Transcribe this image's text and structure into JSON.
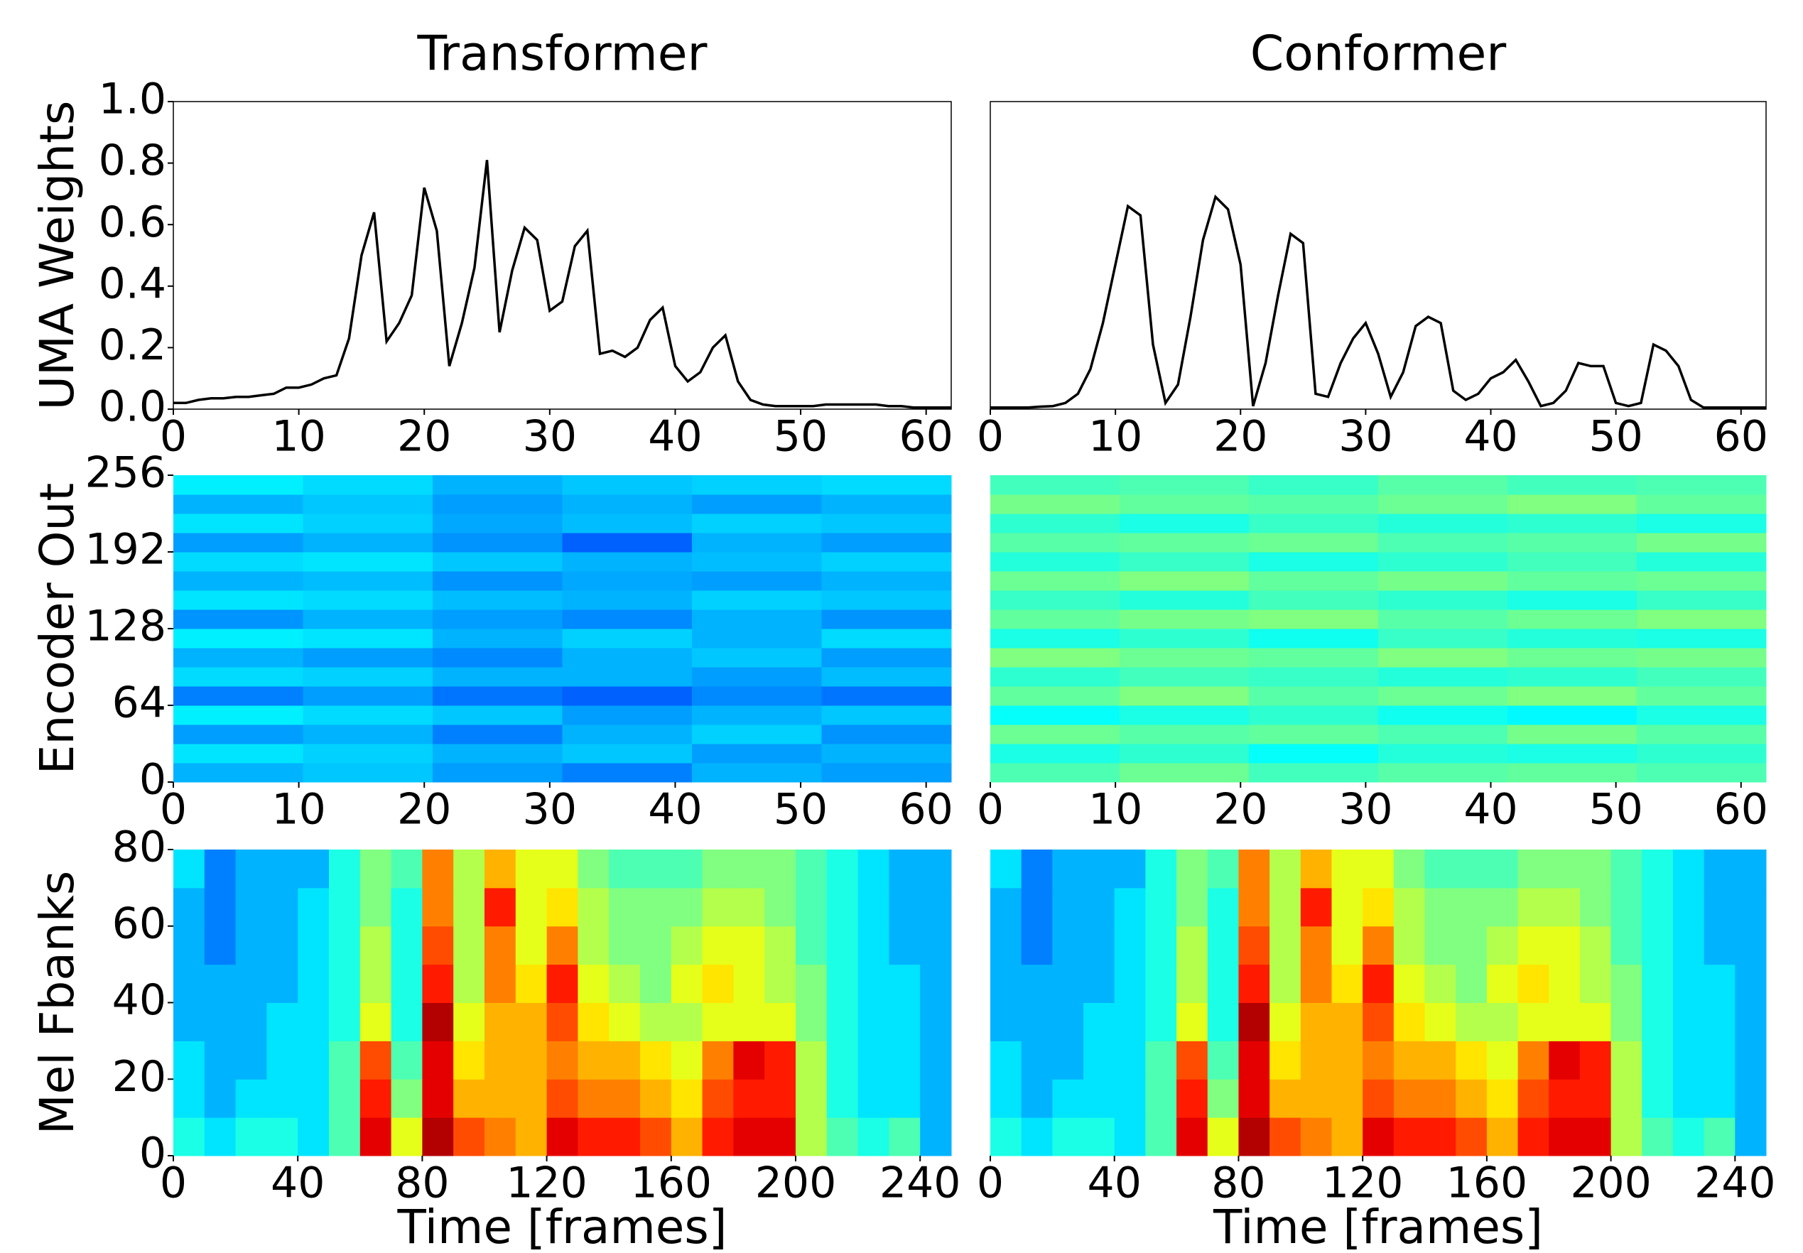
{
  "chart_data": [
    {
      "type": "line",
      "title": "Transformer",
      "ylabel": "UMA Weights",
      "color": "#000000",
      "x": [
        0,
        1,
        2,
        3,
        4,
        5,
        6,
        7,
        8,
        9,
        10,
        11,
        12,
        13,
        14,
        15,
        16,
        17,
        18,
        19,
        20,
        21,
        22,
        23,
        24,
        25,
        26,
        27,
        28,
        29,
        30,
        31,
        32,
        33,
        34,
        35,
        36,
        37,
        38,
        39,
        40,
        41,
        42,
        43,
        44,
        45,
        46,
        47,
        48,
        49,
        50,
        51,
        52,
        53,
        54,
        55,
        56,
        57,
        58,
        59,
        60,
        61,
        62
      ],
      "values": [
        0.02,
        0.02,
        0.03,
        0.035,
        0.035,
        0.04,
        0.04,
        0.045,
        0.05,
        0.07,
        0.07,
        0.08,
        0.1,
        0.11,
        0.23,
        0.5,
        0.64,
        0.22,
        0.28,
        0.37,
        0.72,
        0.58,
        0.14,
        0.28,
        0.46,
        0.81,
        0.25,
        0.45,
        0.59,
        0.55,
        0.32,
        0.35,
        0.53,
        0.58,
        0.18,
        0.19,
        0.17,
        0.2,
        0.29,
        0.33,
        0.14,
        0.09,
        0.12,
        0.2,
        0.24,
        0.09,
        0.03,
        0.015,
        0.01,
        0.01,
        0.01,
        0.01,
        0.015,
        0.015,
        0.015,
        0.015,
        0.015,
        0.01,
        0.01,
        0.005,
        0.005,
        0.005,
        0.005
      ],
      "xlim": [
        0,
        62
      ],
      "ylim": [
        0,
        1
      ],
      "xticks": [
        0,
        10,
        20,
        30,
        40,
        50,
        60
      ],
      "yticks": [
        {
          "value": 0,
          "label": "0.0"
        },
        0.2,
        0.4,
        0.6,
        0.8,
        {
          "value": 1,
          "label": "1.0"
        }
      ]
    },
    {
      "type": "line",
      "title": "Conformer",
      "color": "#000000",
      "x": [
        0,
        1,
        2,
        3,
        4,
        5,
        6,
        7,
        8,
        9,
        10,
        11,
        12,
        13,
        14,
        15,
        16,
        17,
        18,
        19,
        20,
        21,
        22,
        23,
        24,
        25,
        26,
        27,
        28,
        29,
        30,
        31,
        32,
        33,
        34,
        35,
        36,
        37,
        38,
        39,
        40,
        41,
        42,
        43,
        44,
        45,
        46,
        47,
        48,
        49,
        50,
        51,
        52,
        53,
        54,
        55,
        56,
        57,
        58,
        59,
        60,
        61,
        62
      ],
      "values": [
        0.005,
        0.005,
        0.005,
        0.005,
        0.008,
        0.01,
        0.02,
        0.05,
        0.13,
        0.28,
        0.47,
        0.66,
        0.63,
        0.21,
        0.02,
        0.08,
        0.3,
        0.55,
        0.69,
        0.65,
        0.47,
        0.01,
        0.15,
        0.37,
        0.57,
        0.54,
        0.05,
        0.04,
        0.15,
        0.23,
        0.28,
        0.18,
        0.04,
        0.12,
        0.27,
        0.3,
        0.28,
        0.06,
        0.03,
        0.05,
        0.1,
        0.12,
        0.16,
        0.09,
        0.01,
        0.02,
        0.06,
        0.15,
        0.14,
        0.14,
        0.02,
        0.01,
        0.02,
        0.21,
        0.19,
        0.14,
        0.03,
        0.005,
        0.005,
        0.005,
        0.005,
        0.005,
        0.005
      ],
      "xlim": [
        0,
        62
      ],
      "ylim": [
        0,
        1
      ],
      "xticks": [
        0,
        10,
        20,
        30,
        40,
        50,
        60
      ]
    },
    {
      "type": "heatmap",
      "ylabel": "Encoder Out",
      "colormap": "jet",
      "xlim": [
        0,
        62
      ],
      "ylim": [
        0,
        256
      ],
      "xticks": [
        0,
        10,
        20,
        30,
        40,
        50,
        60
      ],
      "yticks": [
        0,
        64,
        128,
        192,
        256
      ],
      "z": [
        [
          0.3,
          0.32,
          0.28,
          0.25,
          0.3,
          0.28
        ],
        [
          0.35,
          0.33,
          0.3,
          0.32,
          0.28,
          0.3
        ],
        [
          0.28,
          0.3,
          0.25,
          0.3,
          0.33,
          0.27
        ],
        [
          0.36,
          0.34,
          0.32,
          0.28,
          0.3,
          0.32
        ],
        [
          0.25,
          0.28,
          0.24,
          0.22,
          0.26,
          0.24
        ],
        [
          0.34,
          0.33,
          0.3,
          0.3,
          0.28,
          0.31
        ],
        [
          0.3,
          0.28,
          0.26,
          0.3,
          0.32,
          0.28
        ],
        [
          0.36,
          0.35,
          0.3,
          0.33,
          0.3,
          0.34
        ],
        [
          0.27,
          0.3,
          0.28,
          0.26,
          0.3,
          0.27
        ],
        [
          0.35,
          0.34,
          0.31,
          0.3,
          0.33,
          0.32
        ],
        [
          0.3,
          0.31,
          0.27,
          0.29,
          0.28,
          0.3
        ],
        [
          0.34,
          0.35,
          0.32,
          0.3,
          0.31,
          0.33
        ],
        [
          0.28,
          0.3,
          0.27,
          0.22,
          0.3,
          0.28
        ],
        [
          0.35,
          0.33,
          0.29,
          0.31,
          0.33,
          0.32
        ],
        [
          0.3,
          0.32,
          0.28,
          0.3,
          0.28,
          0.3
        ],
        [
          0.36,
          0.34,
          0.3,
          0.32,
          0.33,
          0.34
        ]
      ]
    },
    {
      "type": "heatmap",
      "colormap": "jet",
      "xlim": [
        0,
        62
      ],
      "ylim": [
        0,
        256
      ],
      "xticks": [
        0,
        10,
        20,
        30,
        40,
        50,
        60
      ],
      "z": [
        [
          0.45,
          0.48,
          0.44,
          0.46,
          0.47,
          0.45
        ],
        [
          0.4,
          0.42,
          0.38,
          0.41,
          0.4,
          0.42
        ],
        [
          0.48,
          0.46,
          0.47,
          0.45,
          0.49,
          0.46
        ],
        [
          0.38,
          0.4,
          0.42,
          0.39,
          0.37,
          0.4
        ],
        [
          0.47,
          0.5,
          0.46,
          0.48,
          0.5,
          0.47
        ],
        [
          0.42,
          0.44,
          0.43,
          0.41,
          0.42,
          0.44
        ],
        [
          0.5,
          0.48,
          0.47,
          0.5,
          0.48,
          0.49
        ],
        [
          0.4,
          0.42,
          0.39,
          0.43,
          0.41,
          0.4
        ],
        [
          0.47,
          0.49,
          0.5,
          0.46,
          0.48,
          0.5
        ],
        [
          0.43,
          0.41,
          0.44,
          0.42,
          0.4,
          0.43
        ],
        [
          0.48,
          0.5,
          0.47,
          0.49,
          0.47,
          0.48
        ],
        [
          0.41,
          0.43,
          0.4,
          0.42,
          0.44,
          0.41
        ],
        [
          0.46,
          0.47,
          0.48,
          0.45,
          0.46,
          0.49
        ],
        [
          0.42,
          0.4,
          0.43,
          0.41,
          0.42,
          0.4
        ],
        [
          0.49,
          0.47,
          0.46,
          0.48,
          0.5,
          0.47
        ],
        [
          0.44,
          0.45,
          0.43,
          0.46,
          0.44,
          0.45
        ]
      ]
    },
    {
      "type": "heatmap",
      "ylabel": "Mel Fbanks",
      "xlabel": "Time [frames]",
      "colormap": "jet",
      "xlim": [
        0,
        250
      ],
      "ylim": [
        0,
        80
      ],
      "xticks": [
        0,
        40,
        80,
        120,
        160,
        200,
        240
      ],
      "yticks": [
        0,
        20,
        40,
        60,
        80
      ],
      "z": [
        [
          0.4,
          0.35,
          0.4,
          0.4,
          0.35,
          0.45,
          0.9,
          0.6,
          0.95,
          0.8,
          0.75,
          0.7,
          0.9,
          0.85,
          0.85,
          0.8,
          0.7,
          0.85,
          0.9,
          0.9,
          0.55,
          0.45,
          0.4,
          0.45,
          0.3
        ],
        [
          0.35,
          0.3,
          0.35,
          0.35,
          0.35,
          0.45,
          0.85,
          0.5,
          0.9,
          0.7,
          0.7,
          0.7,
          0.8,
          0.75,
          0.75,
          0.7,
          0.65,
          0.8,
          0.85,
          0.85,
          0.55,
          0.4,
          0.35,
          0.35,
          0.3
        ],
        [
          0.35,
          0.3,
          0.3,
          0.35,
          0.35,
          0.45,
          0.8,
          0.45,
          0.9,
          0.65,
          0.7,
          0.7,
          0.75,
          0.7,
          0.7,
          0.65,
          0.6,
          0.75,
          0.9,
          0.85,
          0.55,
          0.4,
          0.35,
          0.35,
          0.3
        ],
        [
          0.3,
          0.3,
          0.3,
          0.35,
          0.35,
          0.4,
          0.6,
          0.4,
          0.95,
          0.6,
          0.7,
          0.7,
          0.8,
          0.65,
          0.6,
          0.55,
          0.55,
          0.6,
          0.6,
          0.6,
          0.5,
          0.4,
          0.35,
          0.35,
          0.3
        ],
        [
          0.3,
          0.3,
          0.3,
          0.3,
          0.35,
          0.4,
          0.55,
          0.4,
          0.85,
          0.55,
          0.75,
          0.65,
          0.85,
          0.6,
          0.55,
          0.5,
          0.6,
          0.65,
          0.6,
          0.55,
          0.5,
          0.4,
          0.35,
          0.35,
          0.3
        ],
        [
          0.3,
          0.25,
          0.3,
          0.3,
          0.35,
          0.4,
          0.55,
          0.4,
          0.8,
          0.55,
          0.75,
          0.6,
          0.75,
          0.55,
          0.5,
          0.5,
          0.55,
          0.6,
          0.6,
          0.55,
          0.45,
          0.4,
          0.35,
          0.3,
          0.3
        ],
        [
          0.3,
          0.25,
          0.3,
          0.3,
          0.35,
          0.4,
          0.5,
          0.4,
          0.75,
          0.55,
          0.85,
          0.6,
          0.65,
          0.55,
          0.5,
          0.5,
          0.5,
          0.55,
          0.55,
          0.5,
          0.45,
          0.4,
          0.35,
          0.3,
          0.3
        ],
        [
          0.35,
          0.25,
          0.3,
          0.3,
          0.3,
          0.4,
          0.5,
          0.45,
          0.75,
          0.55,
          0.7,
          0.6,
          0.6,
          0.5,
          0.45,
          0.45,
          0.45,
          0.5,
          0.5,
          0.5,
          0.45,
          0.4,
          0.35,
          0.3,
          0.3
        ]
      ]
    },
    {
      "type": "heatmap",
      "xlabel": "Time [frames]",
      "colormap": "jet",
      "xlim": [
        0,
        250
      ],
      "ylim": [
        0,
        80
      ],
      "xticks": [
        0,
        40,
        80,
        120,
        160,
        200,
        240
      ],
      "z": [
        [
          0.4,
          0.35,
          0.4,
          0.4,
          0.35,
          0.45,
          0.9,
          0.6,
          0.95,
          0.8,
          0.75,
          0.7,
          0.9,
          0.85,
          0.85,
          0.8,
          0.7,
          0.85,
          0.9,
          0.9,
          0.55,
          0.45,
          0.4,
          0.45,
          0.3
        ],
        [
          0.35,
          0.3,
          0.35,
          0.35,
          0.35,
          0.45,
          0.85,
          0.5,
          0.9,
          0.7,
          0.7,
          0.7,
          0.8,
          0.75,
          0.75,
          0.7,
          0.65,
          0.8,
          0.85,
          0.85,
          0.55,
          0.4,
          0.35,
          0.35,
          0.3
        ],
        [
          0.35,
          0.3,
          0.3,
          0.35,
          0.35,
          0.45,
          0.8,
          0.45,
          0.9,
          0.65,
          0.7,
          0.7,
          0.75,
          0.7,
          0.7,
          0.65,
          0.6,
          0.75,
          0.9,
          0.85,
          0.55,
          0.4,
          0.35,
          0.35,
          0.3
        ],
        [
          0.3,
          0.3,
          0.3,
          0.35,
          0.35,
          0.4,
          0.6,
          0.4,
          0.95,
          0.6,
          0.7,
          0.7,
          0.8,
          0.65,
          0.6,
          0.55,
          0.55,
          0.6,
          0.6,
          0.6,
          0.5,
          0.4,
          0.35,
          0.35,
          0.3
        ],
        [
          0.3,
          0.3,
          0.3,
          0.3,
          0.35,
          0.4,
          0.55,
          0.4,
          0.85,
          0.55,
          0.75,
          0.65,
          0.85,
          0.6,
          0.55,
          0.5,
          0.6,
          0.65,
          0.6,
          0.55,
          0.5,
          0.4,
          0.35,
          0.35,
          0.3
        ],
        [
          0.3,
          0.25,
          0.3,
          0.3,
          0.35,
          0.4,
          0.55,
          0.4,
          0.8,
          0.55,
          0.75,
          0.6,
          0.75,
          0.55,
          0.5,
          0.5,
          0.55,
          0.6,
          0.6,
          0.55,
          0.45,
          0.4,
          0.35,
          0.3,
          0.3
        ],
        [
          0.3,
          0.25,
          0.3,
          0.3,
          0.35,
          0.4,
          0.5,
          0.4,
          0.75,
          0.55,
          0.85,
          0.6,
          0.65,
          0.55,
          0.5,
          0.5,
          0.5,
          0.55,
          0.55,
          0.5,
          0.45,
          0.4,
          0.35,
          0.3,
          0.3
        ],
        [
          0.35,
          0.25,
          0.3,
          0.3,
          0.3,
          0.4,
          0.5,
          0.45,
          0.75,
          0.55,
          0.7,
          0.6,
          0.6,
          0.5,
          0.45,
          0.45,
          0.45,
          0.5,
          0.5,
          0.5,
          0.45,
          0.4,
          0.35,
          0.3,
          0.3
        ]
      ]
    }
  ]
}
